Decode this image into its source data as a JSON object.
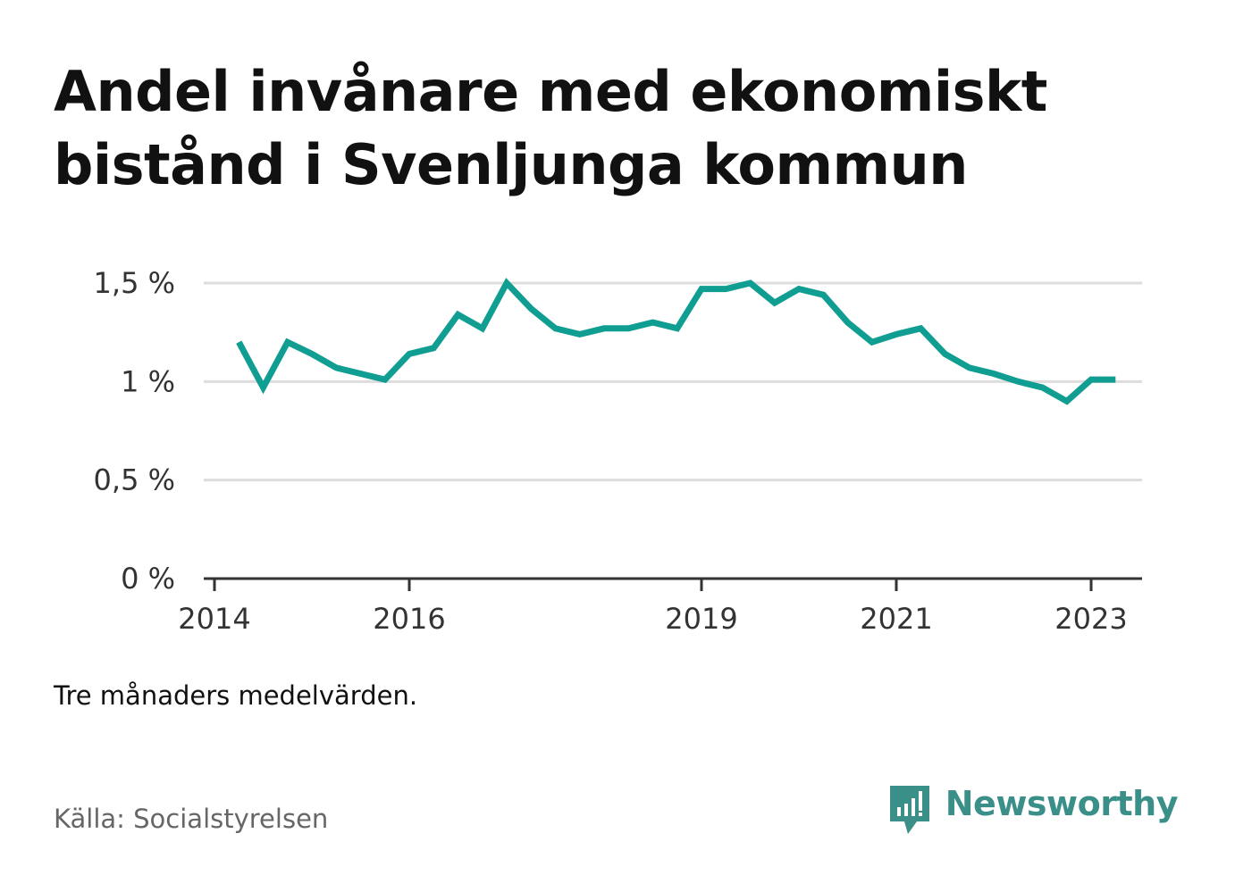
{
  "title": "Andel invånare med ekonomiskt bistånd i Svenljunga kommun",
  "subtitle": "Tre månaders medelvärden.",
  "source": "Källa: Socialstyrelsen",
  "brand": {
    "name": "Newsworthy",
    "logo_icon": "bar-chart-speech-bubble-icon",
    "color": "#3a8f89"
  },
  "chart_data": {
    "type": "line",
    "title": "Andel invånare med ekonomiskt bistånd i Svenljunga kommun",
    "xlabel": "",
    "ylabel": "",
    "x_ticks": [
      "2014",
      "2016",
      "2019",
      "2021",
      "2023"
    ],
    "y_ticks": [
      "0 %",
      "0,5 %",
      "1 %",
      "1,5 %"
    ],
    "ylim": [
      0,
      1.5
    ],
    "xlim": [
      "2014-01",
      "2023-06"
    ],
    "grid": true,
    "line_color": "#0f9e91",
    "series": [
      {
        "x": [
          "2014-04",
          "2014-07",
          "2014-10",
          "2015-01",
          "2015-04",
          "2015-07",
          "2015-10",
          "2016-01",
          "2016-04",
          "2016-07",
          "2016-10",
          "2017-01",
          "2017-04",
          "2017-07",
          "2017-10",
          "2018-01",
          "2018-04",
          "2018-07",
          "2018-10",
          "2019-01",
          "2019-04",
          "2019-07",
          "2019-10",
          "2020-01",
          "2020-04",
          "2020-07",
          "2020-10",
          "2021-01",
          "2021-04",
          "2021-07",
          "2021-10",
          "2022-01",
          "2022-04",
          "2022-07",
          "2022-10",
          "2023-01",
          "2023-04"
        ],
        "values": [
          1.2,
          0.97,
          1.2,
          1.14,
          1.07,
          1.04,
          1.01,
          1.14,
          1.17,
          1.34,
          1.27,
          1.5,
          1.37,
          1.27,
          1.24,
          1.27,
          1.27,
          1.3,
          1.27,
          1.47,
          1.47,
          1.5,
          1.4,
          1.47,
          1.44,
          1.3,
          1.2,
          1.24,
          1.27,
          1.14,
          1.07,
          1.04,
          1.0,
          0.97,
          0.9,
          1.01,
          1.01
        ]
      }
    ]
  }
}
